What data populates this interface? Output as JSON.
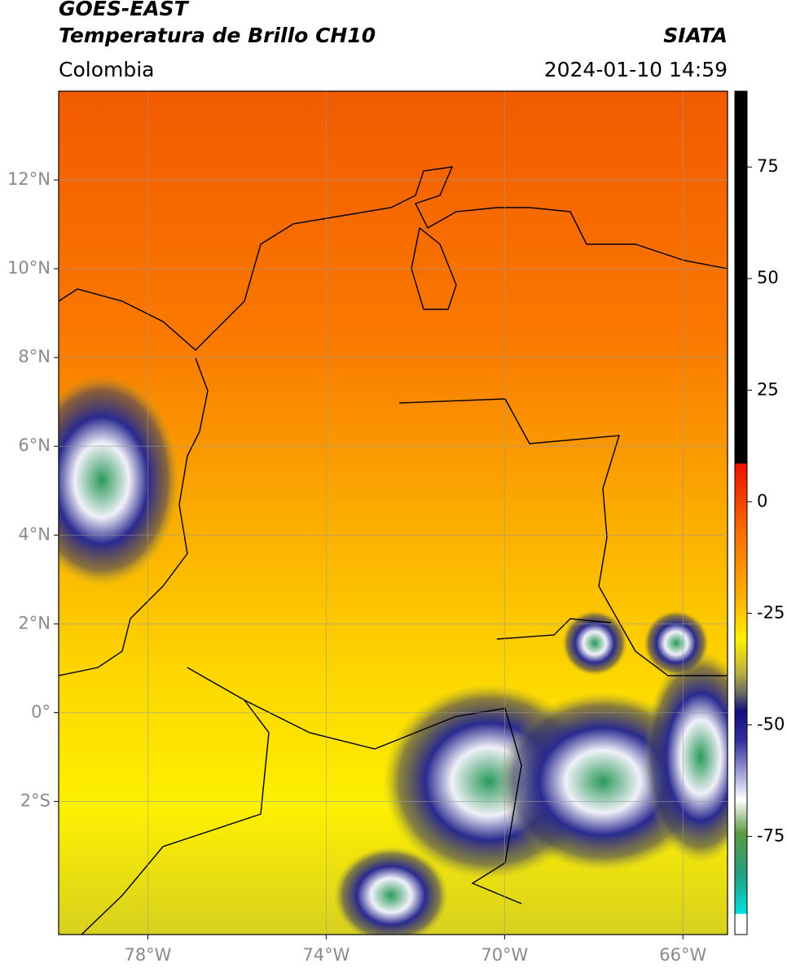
{
  "header": {
    "title": "GOES-EAST",
    "subtitle": "Temperatura de Brillo CH10",
    "source": "SIATA",
    "region": "Colombia",
    "datetime": "2024-01-10 14:59"
  },
  "map": {
    "lon_range": [
      -80,
      -65
    ],
    "lat_range": [
      -5,
      14
    ],
    "lon_ticks": [
      {
        "value": -78,
        "label": "78°W"
      },
      {
        "value": -74,
        "label": "74°W"
      },
      {
        "value": -70,
        "label": "70°W"
      },
      {
        "value": -66,
        "label": "66°W"
      }
    ],
    "lat_ticks": [
      {
        "value": 12,
        "label": "12°N"
      },
      {
        "value": 10,
        "label": "10°N"
      },
      {
        "value": 8,
        "label": "8°N"
      },
      {
        "value": 6,
        "label": "6°N"
      },
      {
        "value": 4,
        "label": "4°N"
      },
      {
        "value": 2,
        "label": "2°N"
      },
      {
        "value": 0,
        "label": "0°"
      },
      {
        "value": -2,
        "label": "2°S"
      }
    ]
  },
  "colorbar": {
    "range": [
      -97,
      92
    ],
    "ticks": [
      75,
      50,
      25,
      0,
      -25,
      -50,
      -75
    ]
  }
}
